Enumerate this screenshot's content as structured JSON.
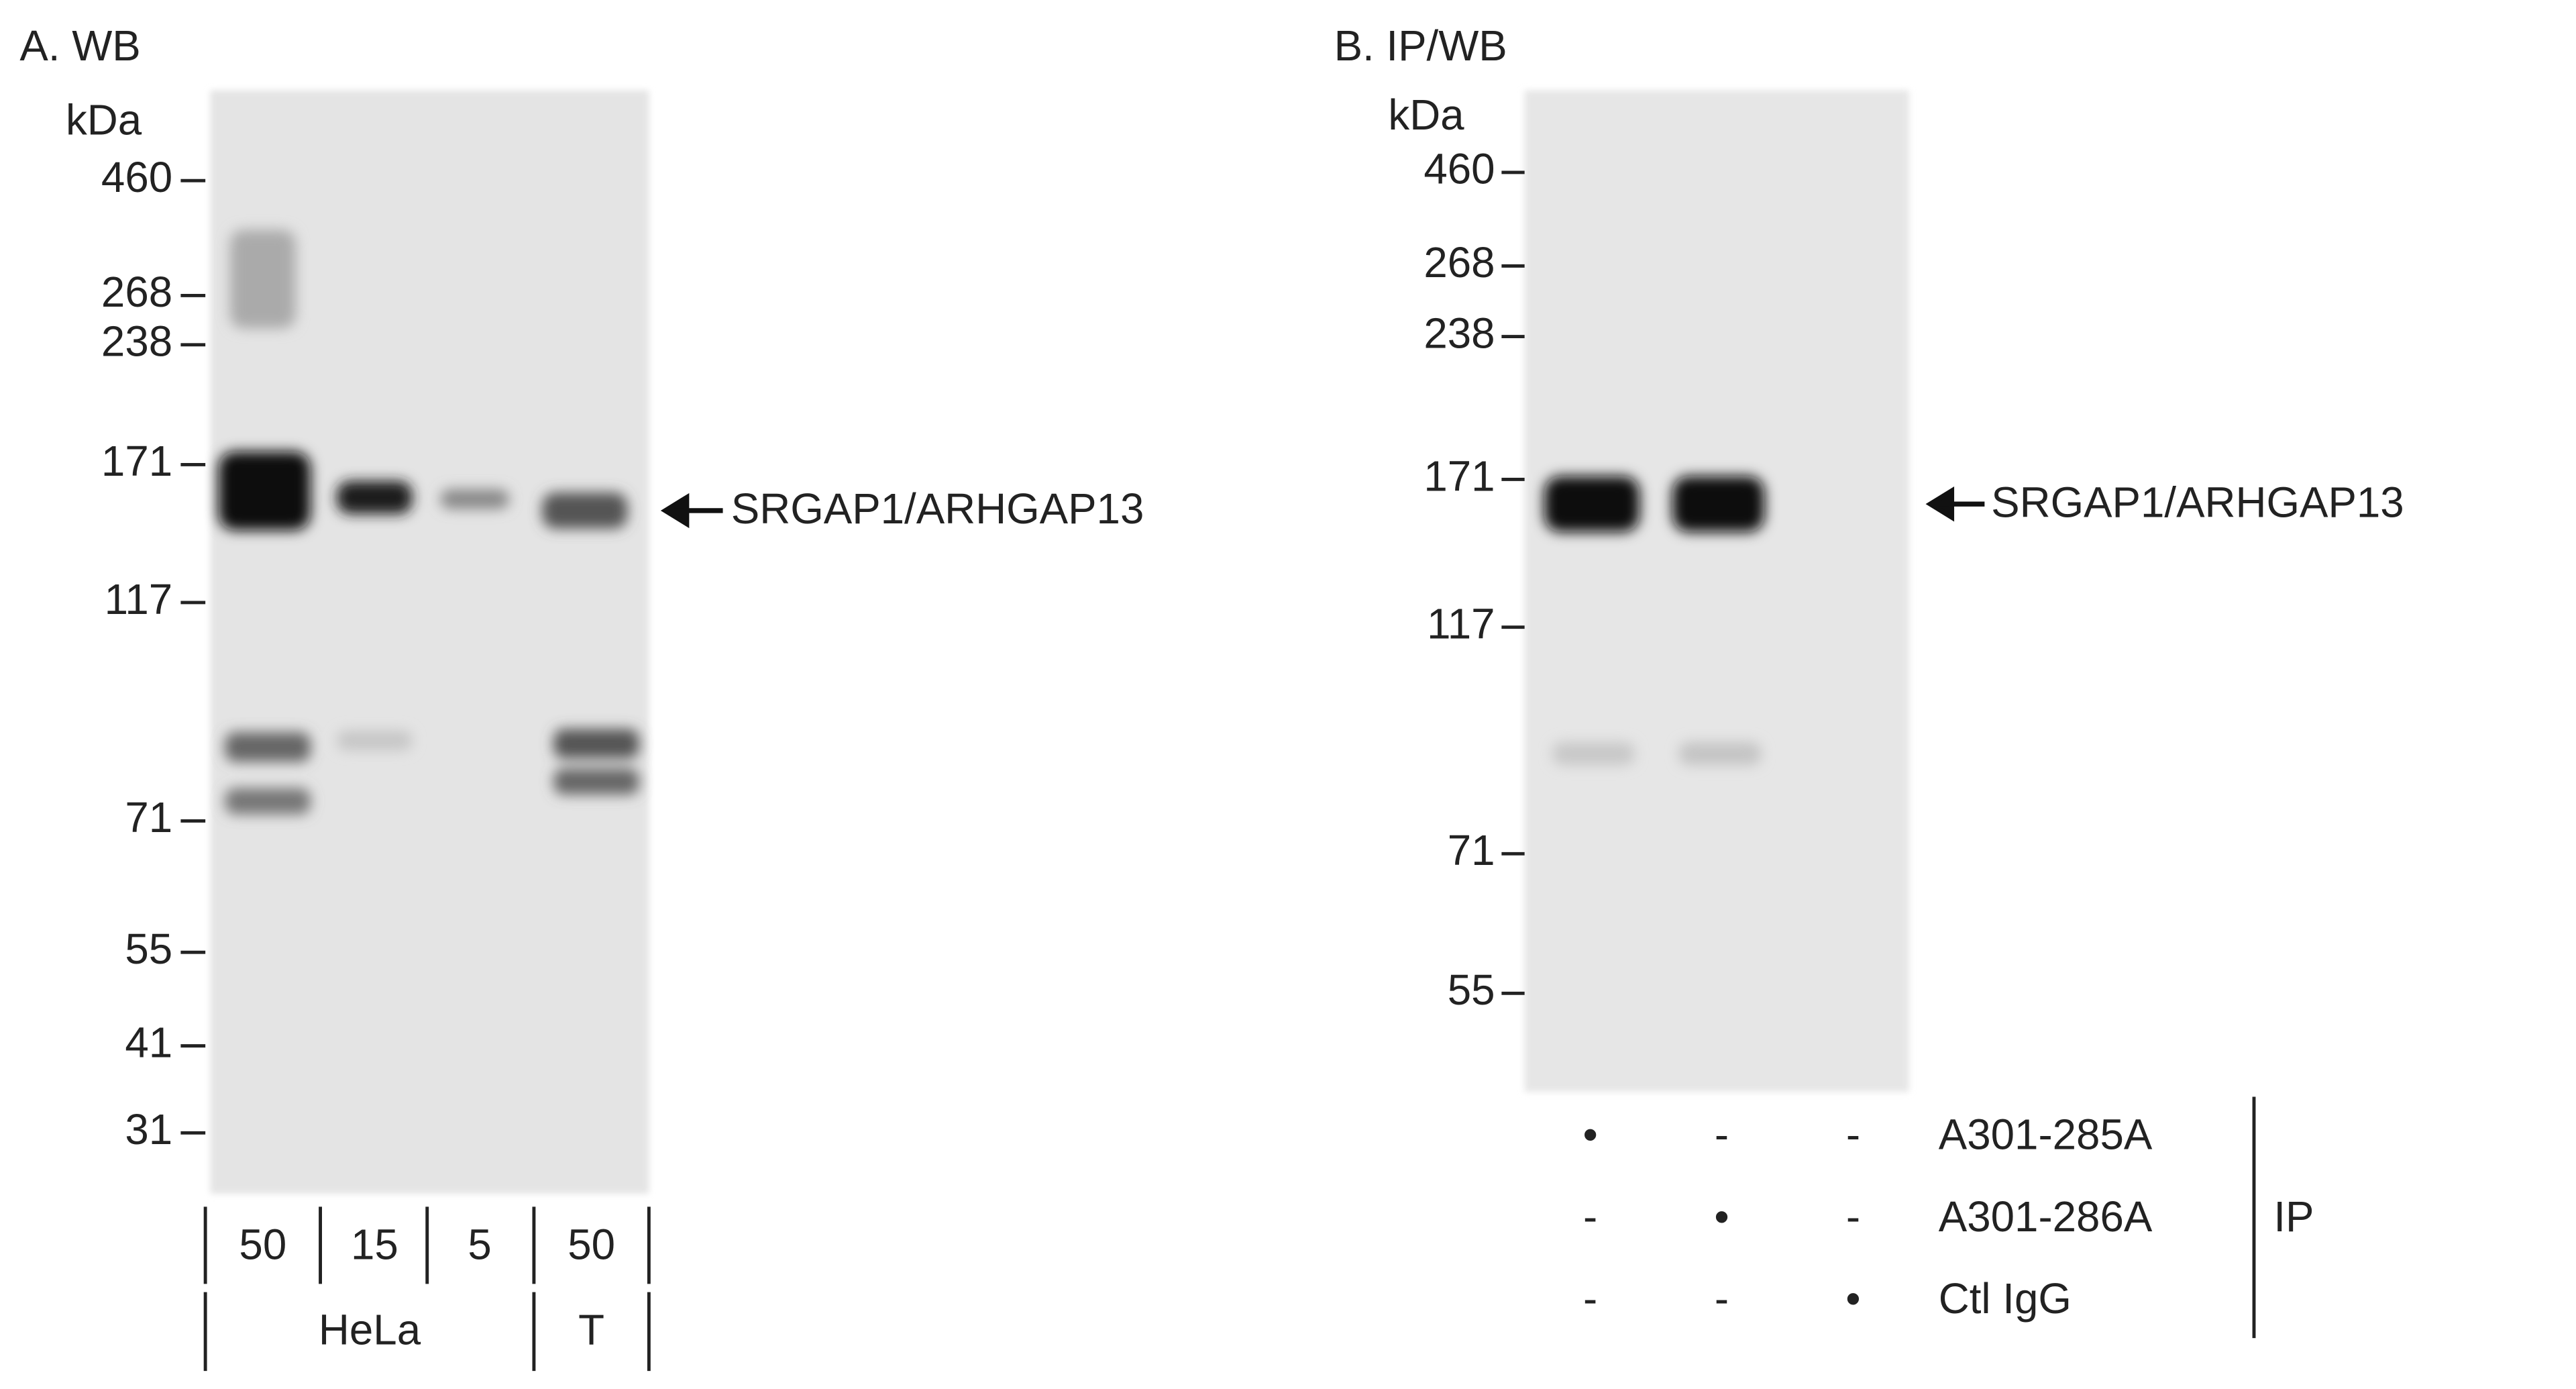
{
  "panel_a": {
    "title": "A. WB",
    "unit": "kDa",
    "markers": [
      "460",
      "268",
      "238",
      "171",
      "117",
      "71",
      "55",
      "41",
      "31"
    ],
    "band_label": "SRGAP1/ARHGAP13",
    "lanes": [
      "50",
      "15",
      "5",
      "50"
    ],
    "samples": [
      "HeLa",
      "T"
    ]
  },
  "panel_b": {
    "title": "B. IP/WB",
    "unit": "kDa",
    "markers": [
      "460",
      "268",
      "238",
      "171",
      "117",
      "71",
      "55"
    ],
    "band_label": "SRGAP1/ARHGAP13",
    "ip_rows": [
      {
        "label": "A301-285A",
        "marks": [
          "•",
          "-",
          "-"
        ]
      },
      {
        "label": "A301-286A",
        "marks": [
          "-",
          "•",
          "-"
        ]
      },
      {
        "label": "Ctl IgG",
        "marks": [
          "-",
          "-",
          "•"
        ]
      }
    ],
    "ip_label": "IP"
  }
}
